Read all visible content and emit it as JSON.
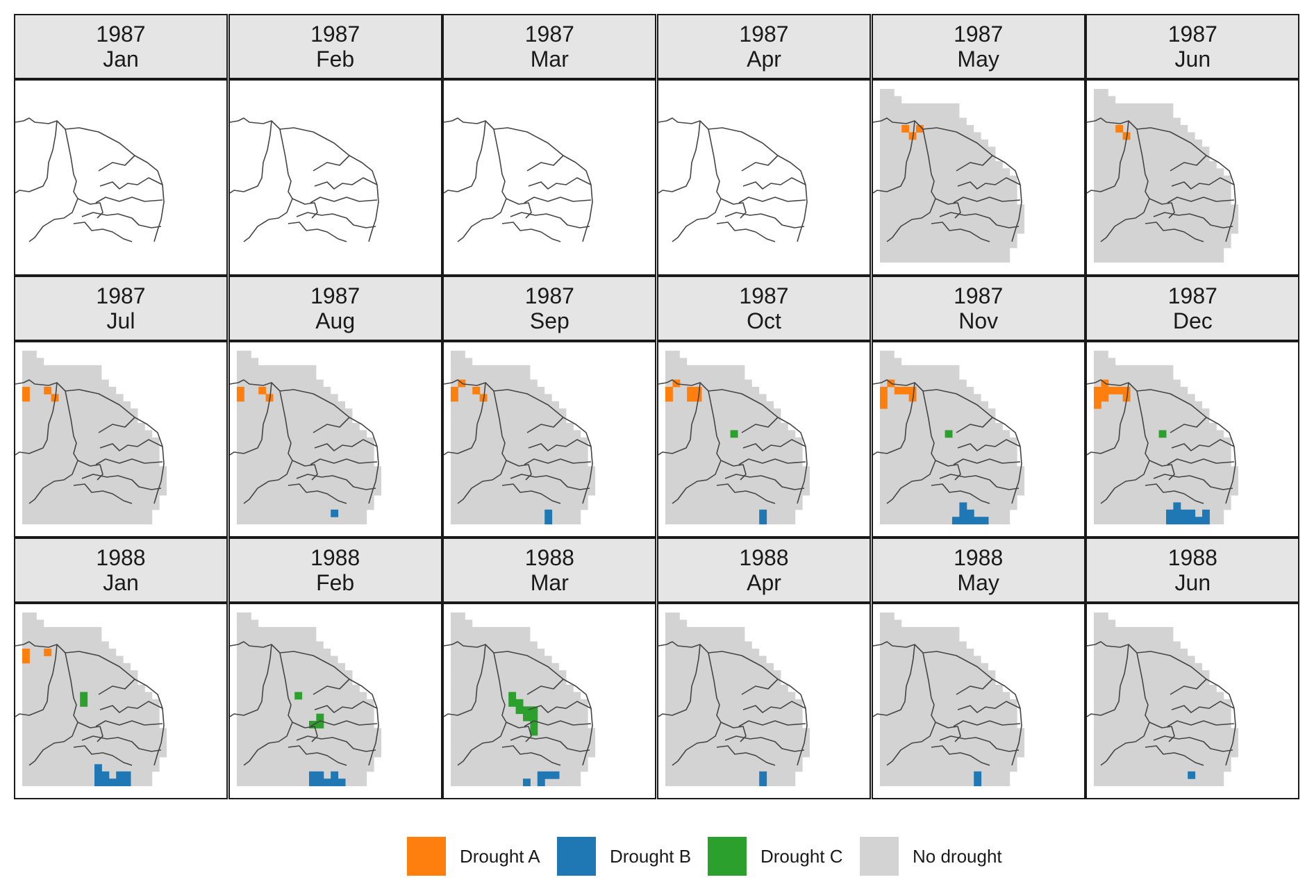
{
  "colors": {
    "drought_a": "#ff7f0e",
    "drought_b": "#1f77b4",
    "drought_c": "#2ca02c",
    "no_drought": "#d3d3d3",
    "border": "#444444"
  },
  "legend": [
    {
      "key": "drought_a",
      "label": "Drought A"
    },
    {
      "key": "drought_b",
      "label": "Drought B"
    },
    {
      "key": "drought_c",
      "label": "Drought C"
    },
    {
      "key": "no_drought",
      "label": "No drought"
    }
  ],
  "panels": [
    {
      "year": "1987",
      "month": "Jan",
      "has_data": false,
      "cells": []
    },
    {
      "year": "1987",
      "month": "Feb",
      "has_data": false,
      "cells": []
    },
    {
      "year": "1987",
      "month": "Mar",
      "has_data": false,
      "cells": []
    },
    {
      "year": "1987",
      "month": "Apr",
      "has_data": false,
      "cells": []
    },
    {
      "year": "1987",
      "month": "May",
      "has_data": true,
      "cells": [
        {
          "type": "drought_a",
          "col": 3,
          "row": 5
        },
        {
          "type": "drought_a",
          "col": 4,
          "row": 6
        },
        {
          "type": "drought_a",
          "col": 5,
          "row": 5
        }
      ]
    },
    {
      "year": "1987",
      "month": "Jun",
      "has_data": true,
      "cells": [
        {
          "type": "drought_a",
          "col": 3,
          "row": 5
        },
        {
          "type": "drought_a",
          "col": 4,
          "row": 6
        }
      ]
    },
    {
      "year": "1987",
      "month": "Jul",
      "has_data": true,
      "cells": [
        {
          "type": "drought_a",
          "col": 0,
          "row": 5
        },
        {
          "type": "drought_a",
          "col": 0,
          "row": 6
        },
        {
          "type": "drought_a",
          "col": 3,
          "row": 5
        },
        {
          "type": "drought_a",
          "col": 4,
          "row": 6
        }
      ]
    },
    {
      "year": "1987",
      "month": "Aug",
      "has_data": true,
      "cells": [
        {
          "type": "drought_a",
          "col": 0,
          "row": 5
        },
        {
          "type": "drought_a",
          "col": 0,
          "row": 6
        },
        {
          "type": "drought_a",
          "col": 3,
          "row": 5
        },
        {
          "type": "drought_a",
          "col": 4,
          "row": 6
        },
        {
          "type": "drought_b",
          "col": 13,
          "row": 22
        }
      ]
    },
    {
      "year": "1987",
      "month": "Sep",
      "has_data": true,
      "cells": [
        {
          "type": "drought_a",
          "col": 0,
          "row": 5
        },
        {
          "type": "drought_a",
          "col": 0,
          "row": 6
        },
        {
          "type": "drought_a",
          "col": 1,
          "row": 4
        },
        {
          "type": "drought_a",
          "col": 3,
          "row": 5
        },
        {
          "type": "drought_a",
          "col": 4,
          "row": 6
        },
        {
          "type": "drought_b",
          "col": 13,
          "row": 22
        },
        {
          "type": "drought_b",
          "col": 13,
          "row": 23
        }
      ]
    },
    {
      "year": "1987",
      "month": "Oct",
      "has_data": true,
      "cells": [
        {
          "type": "drought_a",
          "col": 0,
          "row": 5
        },
        {
          "type": "drought_a",
          "col": 0,
          "row": 6
        },
        {
          "type": "drought_a",
          "col": 1,
          "row": 4
        },
        {
          "type": "drought_a",
          "col": 3,
          "row": 5
        },
        {
          "type": "drought_a",
          "col": 4,
          "row": 5
        },
        {
          "type": "drought_a",
          "col": 3,
          "row": 6
        },
        {
          "type": "drought_a",
          "col": 4,
          "row": 6
        },
        {
          "type": "drought_c",
          "col": 9,
          "row": 11
        },
        {
          "type": "drought_b",
          "col": 13,
          "row": 22
        },
        {
          "type": "drought_b",
          "col": 13,
          "row": 23
        }
      ]
    },
    {
      "year": "1987",
      "month": "Nov",
      "has_data": true,
      "cells": [
        {
          "type": "drought_a",
          "col": 0,
          "row": 5
        },
        {
          "type": "drought_a",
          "col": 0,
          "row": 6
        },
        {
          "type": "drought_a",
          "col": 0,
          "row": 7
        },
        {
          "type": "drought_a",
          "col": 1,
          "row": 4
        },
        {
          "type": "drought_a",
          "col": 2,
          "row": 5
        },
        {
          "type": "drought_a",
          "col": 3,
          "row": 5
        },
        {
          "type": "drought_a",
          "col": 4,
          "row": 5
        },
        {
          "type": "drought_a",
          "col": 4,
          "row": 6
        },
        {
          "type": "drought_c",
          "col": 9,
          "row": 11
        },
        {
          "type": "drought_b",
          "col": 11,
          "row": 21
        },
        {
          "type": "drought_b",
          "col": 11,
          "row": 22
        },
        {
          "type": "drought_b",
          "col": 12,
          "row": 22
        },
        {
          "type": "drought_b",
          "col": 10,
          "row": 23
        },
        {
          "type": "drought_b",
          "col": 11,
          "row": 23
        },
        {
          "type": "drought_b",
          "col": 12,
          "row": 23
        },
        {
          "type": "drought_b",
          "col": 13,
          "row": 23
        },
        {
          "type": "drought_b",
          "col": 14,
          "row": 23
        }
      ]
    },
    {
      "year": "1987",
      "month": "Dec",
      "has_data": true,
      "cells": [
        {
          "type": "drought_a",
          "col": 0,
          "row": 5
        },
        {
          "type": "drought_a",
          "col": 0,
          "row": 6
        },
        {
          "type": "drought_a",
          "col": 0,
          "row": 7
        },
        {
          "type": "drought_a",
          "col": 1,
          "row": 4
        },
        {
          "type": "drought_a",
          "col": 1,
          "row": 5
        },
        {
          "type": "drought_a",
          "col": 1,
          "row": 6
        },
        {
          "type": "drought_a",
          "col": 2,
          "row": 5
        },
        {
          "type": "drought_a",
          "col": 3,
          "row": 5
        },
        {
          "type": "drought_a",
          "col": 4,
          "row": 5
        },
        {
          "type": "drought_a",
          "col": 4,
          "row": 6
        },
        {
          "type": "drought_c",
          "col": 9,
          "row": 11
        },
        {
          "type": "drought_b",
          "col": 11,
          "row": 21
        },
        {
          "type": "drought_b",
          "col": 11,
          "row": 22
        },
        {
          "type": "drought_b",
          "col": 12,
          "row": 22
        },
        {
          "type": "drought_b",
          "col": 13,
          "row": 22
        },
        {
          "type": "drought_b",
          "col": 15,
          "row": 22
        },
        {
          "type": "drought_b",
          "col": 10,
          "row": 23
        },
        {
          "type": "drought_b",
          "col": 11,
          "row": 23
        },
        {
          "type": "drought_b",
          "col": 12,
          "row": 23
        },
        {
          "type": "drought_b",
          "col": 13,
          "row": 23
        },
        {
          "type": "drought_b",
          "col": 14,
          "row": 23
        },
        {
          "type": "drought_b",
          "col": 15,
          "row": 23
        },
        {
          "type": "drought_b",
          "col": 10,
          "row": 22
        }
      ]
    },
    {
      "year": "1988",
      "month": "Jan",
      "has_data": true,
      "cells": [
        {
          "type": "drought_a",
          "col": 0,
          "row": 5
        },
        {
          "type": "drought_a",
          "col": 0,
          "row": 6
        },
        {
          "type": "drought_a",
          "col": 3,
          "row": 5
        },
        {
          "type": "drought_c",
          "col": 8,
          "row": 11
        },
        {
          "type": "drought_c",
          "col": 8,
          "row": 12
        },
        {
          "type": "drought_b",
          "col": 10,
          "row": 21
        },
        {
          "type": "drought_b",
          "col": 10,
          "row": 22
        },
        {
          "type": "drought_b",
          "col": 11,
          "row": 22
        },
        {
          "type": "drought_b",
          "col": 13,
          "row": 22
        },
        {
          "type": "drought_b",
          "col": 14,
          "row": 22
        },
        {
          "type": "drought_b",
          "col": 10,
          "row": 23
        },
        {
          "type": "drought_b",
          "col": 11,
          "row": 23
        },
        {
          "type": "drought_b",
          "col": 12,
          "row": 23
        },
        {
          "type": "drought_b",
          "col": 13,
          "row": 23
        },
        {
          "type": "drought_b",
          "col": 14,
          "row": 23
        }
      ]
    },
    {
      "year": "1988",
      "month": "Feb",
      "has_data": true,
      "cells": [
        {
          "type": "drought_c",
          "col": 8,
          "row": 11
        },
        {
          "type": "drought_c",
          "col": 11,
          "row": 14
        },
        {
          "type": "drought_c",
          "col": 10,
          "row": 15
        },
        {
          "type": "drought_c",
          "col": 11,
          "row": 15
        },
        {
          "type": "drought_b",
          "col": 10,
          "row": 22
        },
        {
          "type": "drought_b",
          "col": 11,
          "row": 22
        },
        {
          "type": "drought_b",
          "col": 13,
          "row": 22
        },
        {
          "type": "drought_b",
          "col": 10,
          "row": 23
        },
        {
          "type": "drought_b",
          "col": 11,
          "row": 23
        },
        {
          "type": "drought_b",
          "col": 12,
          "row": 23
        },
        {
          "type": "drought_b",
          "col": 13,
          "row": 23
        },
        {
          "type": "drought_b",
          "col": 14,
          "row": 23
        }
      ]
    },
    {
      "year": "1988",
      "month": "Mar",
      "has_data": true,
      "cells": [
        {
          "type": "drought_c",
          "col": 8,
          "row": 11
        },
        {
          "type": "drought_c",
          "col": 8,
          "row": 12
        },
        {
          "type": "drought_c",
          "col": 9,
          "row": 12
        },
        {
          "type": "drought_c",
          "col": 9,
          "row": 13
        },
        {
          "type": "drought_c",
          "col": 10,
          "row": 13
        },
        {
          "type": "drought_c",
          "col": 11,
          "row": 13
        },
        {
          "type": "drought_c",
          "col": 10,
          "row": 14
        },
        {
          "type": "drought_c",
          "col": 11,
          "row": 14
        },
        {
          "type": "drought_c",
          "col": 11,
          "row": 15
        },
        {
          "type": "drought_c",
          "col": 11,
          "row": 16
        },
        {
          "type": "drought_b",
          "col": 12,
          "row": 22
        },
        {
          "type": "drought_b",
          "col": 13,
          "row": 22
        },
        {
          "type": "drought_b",
          "col": 14,
          "row": 22
        },
        {
          "type": "drought_b",
          "col": 12,
          "row": 23
        },
        {
          "type": "drought_b",
          "col": 10,
          "row": 23
        }
      ]
    },
    {
      "year": "1988",
      "month": "Apr",
      "has_data": true,
      "cells": [
        {
          "type": "drought_b",
          "col": 13,
          "row": 22
        },
        {
          "type": "drought_b",
          "col": 13,
          "row": 23
        }
      ]
    },
    {
      "year": "1988",
      "month": "May",
      "has_data": true,
      "cells": [
        {
          "type": "drought_b",
          "col": 13,
          "row": 22
        },
        {
          "type": "drought_b",
          "col": 13,
          "row": 23
        }
      ]
    },
    {
      "year": "1988",
      "month": "Jun",
      "has_data": true,
      "cells": [
        {
          "type": "drought_b",
          "col": 13,
          "row": 22
        }
      ]
    }
  ]
}
